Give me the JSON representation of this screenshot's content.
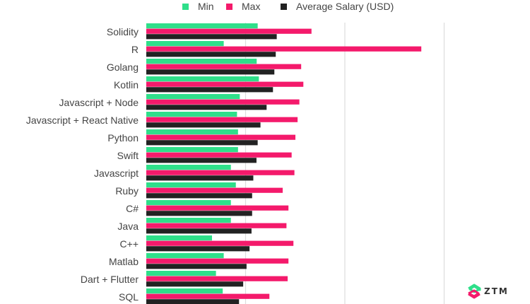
{
  "chart_data": {
    "type": "bar",
    "orientation": "horizontal",
    "title": "",
    "xlabel": "",
    "ylabel": "",
    "xlim": [
      0,
      150000
    ],
    "grid": true,
    "gridlines_x": [
      50000,
      100000,
      150000
    ],
    "legend_position": "top",
    "categories": [
      "Solidity",
      "R",
      "Golang",
      "Kotlin",
      "Javascript + Node",
      "Javascript + React Native",
      "Python",
      "Swift",
      "Javascript",
      "Ruby",
      "C#",
      "Java",
      "C++",
      "Matlab",
      "Dart + Flutter",
      "SQL"
    ],
    "series": [
      {
        "name": "Min",
        "color": "#2fdf8a",
        "values": [
          56100,
          39000,
          55600,
          56700,
          47100,
          45700,
          46200,
          46200,
          42600,
          45100,
          42600,
          42600,
          33100,
          39000,
          35100,
          38500
        ]
      },
      {
        "name": "Max",
        "color": "#f41a6b",
        "values": [
          83200,
          138500,
          78000,
          79100,
          77100,
          76200,
          75100,
          73200,
          74600,
          68700,
          71600,
          70600,
          74100,
          71600,
          71200,
          62000
        ]
      },
      {
        "name": "Average Salary (USD)",
        "color": "#222222",
        "values": [
          65700,
          65200,
          64500,
          63800,
          60600,
          57500,
          56100,
          55500,
          53900,
          53300,
          53300,
          53000,
          52000,
          50500,
          48800,
          46700
        ]
      }
    ]
  },
  "logo": {
    "text": "ZTM",
    "colors": [
      "#2fdf8a",
      "#f41a6b"
    ]
  }
}
